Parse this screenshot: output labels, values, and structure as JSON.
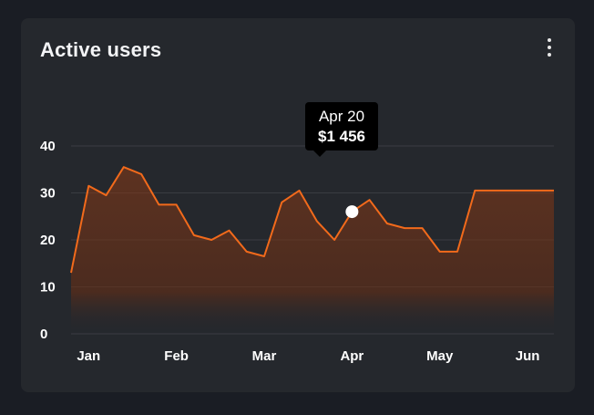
{
  "card": {
    "title": "Active users",
    "menu_icon": "more-vertical-icon"
  },
  "tooltip": {
    "date": "Apr 20",
    "value": "$1 456"
  },
  "colors": {
    "background": "#1a1d24",
    "card": "#25282d",
    "line": "#f26a1b",
    "grid": "#3a3d42"
  },
  "chart_data": {
    "type": "area",
    "title": "Active users",
    "xlabel": "",
    "ylabel": "",
    "ylim": [
      0,
      40
    ],
    "yticks": [
      0,
      10,
      20,
      30,
      40
    ],
    "xticks": [
      "Jan",
      "Feb",
      "Mar",
      "Apr",
      "May",
      "Jun"
    ],
    "xtick_positions": [
      2,
      12,
      22,
      32,
      42,
      52
    ],
    "xlim": [
      0,
      55
    ],
    "highlight_index": 32,
    "series": [
      {
        "name": "Active users",
        "x": [
          0,
          2,
          4,
          6,
          8,
          10,
          12,
          14,
          16,
          18,
          20,
          22,
          24,
          26,
          28,
          30,
          32,
          34,
          36,
          38,
          40,
          42,
          44,
          46,
          48,
          50,
          52,
          54,
          55
        ],
        "values": [
          13,
          31.5,
          29.5,
          35.5,
          34,
          27.5,
          27.5,
          21,
          20,
          22,
          17.5,
          16.5,
          28,
          30.5,
          24,
          20,
          26,
          28.5,
          23.5,
          22.5,
          22.5,
          17.5,
          17.5,
          30.5,
          30.5,
          30.5,
          30.5,
          30.5,
          30.5
        ]
      }
    ]
  }
}
